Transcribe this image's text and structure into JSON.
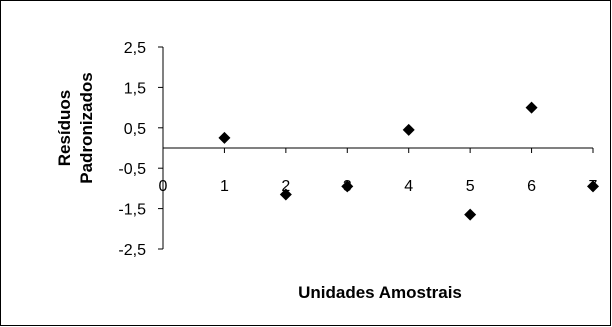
{
  "chart_data": {
    "type": "scatter",
    "title": "",
    "xlabel": "Unidades Amostrais",
    "ylabel": "Resíduos Padronizados",
    "ylabel_lines": [
      "Resíduos",
      "Padronizados"
    ],
    "xlim": [
      0,
      7
    ],
    "ylim": [
      -2.5,
      2.5
    ],
    "x_ticks": [
      "0",
      "1",
      "2",
      "3",
      "4",
      "5",
      "6",
      "7"
    ],
    "y_ticks": [
      "2,5",
      "1,5",
      "0,5",
      "-0,5",
      "-1,5",
      "-2,5"
    ],
    "grid": false,
    "legend": "none",
    "marker": "diamond",
    "marker_color": "#000000",
    "points": [
      {
        "x": 1,
        "y": 0.25
      },
      {
        "x": 2,
        "y": -1.15
      },
      {
        "x": 3,
        "y": -0.95
      },
      {
        "x": 4,
        "y": 0.45
      },
      {
        "x": 5,
        "y": -1.65
      },
      {
        "x": 6,
        "y": 1.0
      },
      {
        "x": 7,
        "y": -0.95
      }
    ]
  }
}
